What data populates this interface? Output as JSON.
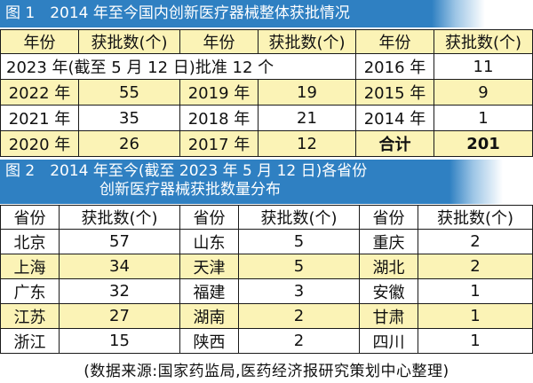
{
  "figure1": {
    "title": "图 1　2014 年至今国内创新医疗器械整体获批情况",
    "headers": [
      "年份",
      "获批数(个)",
      "年份",
      "获批数(个)",
      "年份",
      "获批数(个)"
    ],
    "note_row": {
      "text": "2023 年(截至 5 月 12 日)批准 12 个",
      "year": "2016 年",
      "value": "11"
    },
    "rows": [
      [
        "2022 年",
        "55",
        "2019 年",
        "19",
        "2015 年",
        "9"
      ],
      [
        "2021 年",
        "35",
        "2018 年",
        "21",
        "2014 年",
        "1"
      ],
      [
        "2020 年",
        "26",
        "2017 年",
        "12",
        "合计",
        "201"
      ]
    ]
  },
  "figure2": {
    "title_line1": "图 2　2014 年至今(截至 2023 年 5 月 12 日)各省份",
    "title_line2": "创新医疗器械获批数量分布",
    "headers": [
      "省份",
      "获批数(个)",
      "省份",
      "获批数(个)",
      "省份",
      "获批数(个)"
    ],
    "rows": [
      [
        "北京",
        "57",
        "山东",
        "5",
        "重庆",
        "2"
      ],
      [
        "上海",
        "34",
        "天津",
        "5",
        "湖北",
        "2"
      ],
      [
        "广东",
        "32",
        "福建",
        "3",
        "安徽",
        "1"
      ],
      [
        "江苏",
        "27",
        "湖南",
        "2",
        "甘肃",
        "1"
      ],
      [
        "浙江",
        "15",
        "陕西",
        "2",
        "四川",
        "1"
      ]
    ]
  },
  "source": "(数据来源:国家药监局,医药经济报研究策划中心整理)"
}
